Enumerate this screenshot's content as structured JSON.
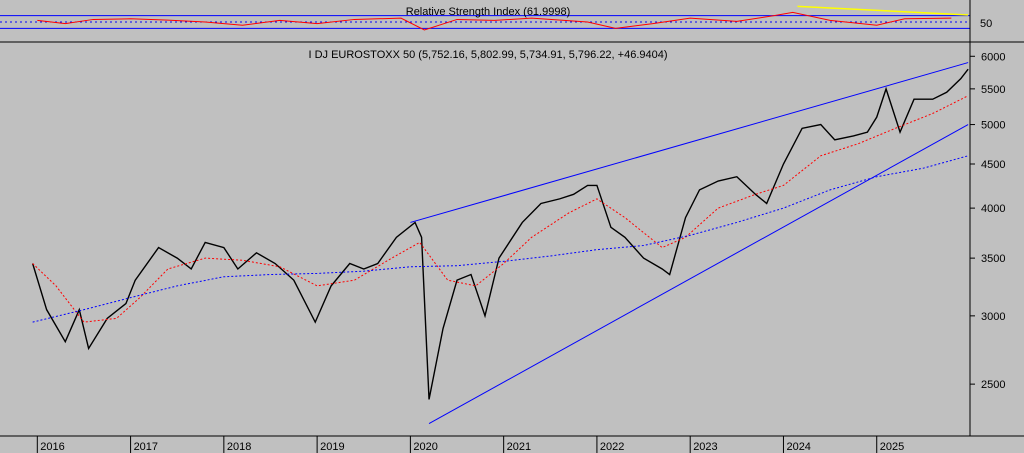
{
  "chart_data": [
    {
      "type": "line",
      "title": "Relative Strength Index (61.9998)",
      "ylim": [
        0,
        100
      ],
      "yticks": [
        50
      ],
      "bands": [
        30,
        50,
        70
      ],
      "last_value": 61.9998,
      "colors": {
        "line": "#ff0000",
        "bands": "#0000ff",
        "mid": "#0000ff",
        "trendline": "#ffff00"
      },
      "approx_points": [
        {
          "x": 2016.0,
          "y": 55
        },
        {
          "x": 2016.3,
          "y": 45
        },
        {
          "x": 2016.6,
          "y": 58
        },
        {
          "x": 2017.0,
          "y": 60
        },
        {
          "x": 2017.4,
          "y": 56
        },
        {
          "x": 2017.8,
          "y": 50
        },
        {
          "x": 2018.2,
          "y": 40
        },
        {
          "x": 2018.6,
          "y": 55
        },
        {
          "x": 2019.0,
          "y": 45
        },
        {
          "x": 2019.4,
          "y": 58
        },
        {
          "x": 2019.9,
          "y": 62
        },
        {
          "x": 2020.15,
          "y": 25
        },
        {
          "x": 2020.5,
          "y": 58
        },
        {
          "x": 2020.9,
          "y": 55
        },
        {
          "x": 2021.3,
          "y": 62
        },
        {
          "x": 2021.9,
          "y": 50
        },
        {
          "x": 2022.2,
          "y": 30
        },
        {
          "x": 2022.6,
          "y": 45
        },
        {
          "x": 2023.0,
          "y": 62
        },
        {
          "x": 2023.5,
          "y": 52
        },
        {
          "x": 2023.9,
          "y": 70
        },
        {
          "x": 2024.1,
          "y": 80
        },
        {
          "x": 2024.5,
          "y": 55
        },
        {
          "x": 2025.0,
          "y": 40
        },
        {
          "x": 2025.3,
          "y": 60
        },
        {
          "x": 2025.8,
          "y": 62
        }
      ]
    },
    {
      "type": "line",
      "title": "I DJ EUROSTOXX 50 (5,752.16, 5,802.99, 5,734.91, 5,796.22, +46.9404)",
      "ohlc_last": {
        "open": 5752.16,
        "high": 5802.99,
        "low": 5734.91,
        "close": 5796.22,
        "change": 46.9404
      },
      "scale": "log",
      "ylim": [
        2200,
        6200
      ],
      "yticks": [
        2500,
        3000,
        3500,
        4000,
        4500,
        5000,
        5500,
        6000
      ],
      "xticks": [
        "2016",
        "2017",
        "2018",
        "2019",
        "2020",
        "2021",
        "2022",
        "2023",
        "2024",
        "2025"
      ],
      "colors": {
        "price": "#000000",
        "ma_short": "#ff0000",
        "ma_long": "#0000ff",
        "channel": "#0000ff"
      },
      "series": [
        {
          "key": "price",
          "points": [
            {
              "x": 2015.95,
              "y": 3450
            },
            {
              "x": 2016.1,
              "y": 3050
            },
            {
              "x": 2016.3,
              "y": 2800
            },
            {
              "x": 2016.45,
              "y": 3050
            },
            {
              "x": 2016.55,
              "y": 2750
            },
            {
              "x": 2016.75,
              "y": 2980
            },
            {
              "x": 2016.95,
              "y": 3100
            },
            {
              "x": 2017.05,
              "y": 3300
            },
            {
              "x": 2017.3,
              "y": 3600
            },
            {
              "x": 2017.5,
              "y": 3500
            },
            {
              "x": 2017.65,
              "y": 3400
            },
            {
              "x": 2017.8,
              "y": 3650
            },
            {
              "x": 2018.0,
              "y": 3600
            },
            {
              "x": 2018.15,
              "y": 3400
            },
            {
              "x": 2018.35,
              "y": 3550
            },
            {
              "x": 2018.55,
              "y": 3450
            },
            {
              "x": 2018.75,
              "y": 3300
            },
            {
              "x": 2018.98,
              "y": 2950
            },
            {
              "x": 2019.15,
              "y": 3250
            },
            {
              "x": 2019.35,
              "y": 3450
            },
            {
              "x": 2019.5,
              "y": 3400
            },
            {
              "x": 2019.65,
              "y": 3450
            },
            {
              "x": 2019.85,
              "y": 3700
            },
            {
              "x": 2020.05,
              "y": 3850
            },
            {
              "x": 2020.12,
              "y": 3700
            },
            {
              "x": 2020.2,
              "y": 2400
            },
            {
              "x": 2020.35,
              "y": 2900
            },
            {
              "x": 2020.5,
              "y": 3300
            },
            {
              "x": 2020.65,
              "y": 3350
            },
            {
              "x": 2020.8,
              "y": 3000
            },
            {
              "x": 2020.95,
              "y": 3500
            },
            {
              "x": 2021.2,
              "y": 3850
            },
            {
              "x": 2021.4,
              "y": 4050
            },
            {
              "x": 2021.6,
              "y": 4100
            },
            {
              "x": 2021.75,
              "y": 4150
            },
            {
              "x": 2021.9,
              "y": 4250
            },
            {
              "x": 2022.0,
              "y": 4250
            },
            {
              "x": 2022.15,
              "y": 3800
            },
            {
              "x": 2022.3,
              "y": 3700
            },
            {
              "x": 2022.5,
              "y": 3500
            },
            {
              "x": 2022.7,
              "y": 3400
            },
            {
              "x": 2022.78,
              "y": 3350
            },
            {
              "x": 2022.95,
              "y": 3900
            },
            {
              "x": 2023.1,
              "y": 4200
            },
            {
              "x": 2023.3,
              "y": 4300
            },
            {
              "x": 2023.5,
              "y": 4350
            },
            {
              "x": 2023.7,
              "y": 4150
            },
            {
              "x": 2023.82,
              "y": 4050
            },
            {
              "x": 2024.0,
              "y": 4500
            },
            {
              "x": 2024.2,
              "y": 4950
            },
            {
              "x": 2024.4,
              "y": 5000
            },
            {
              "x": 2024.55,
              "y": 4800
            },
            {
              "x": 2024.75,
              "y": 4850
            },
            {
              "x": 2024.9,
              "y": 4900
            },
            {
              "x": 2025.0,
              "y": 5100
            },
            {
              "x": 2025.1,
              "y": 5500
            },
            {
              "x": 2025.25,
              "y": 4900
            },
            {
              "x": 2025.4,
              "y": 5350
            },
            {
              "x": 2025.6,
              "y": 5350
            },
            {
              "x": 2025.75,
              "y": 5450
            },
            {
              "x": 2025.9,
              "y": 5650
            },
            {
              "x": 2025.98,
              "y": 5796
            }
          ]
        },
        {
          "key": "ma_short",
          "points": [
            {
              "x": 2015.95,
              "y": 3450
            },
            {
              "x": 2016.2,
              "y": 3250
            },
            {
              "x": 2016.5,
              "y": 2950
            },
            {
              "x": 2016.85,
              "y": 2980
            },
            {
              "x": 2017.1,
              "y": 3150
            },
            {
              "x": 2017.4,
              "y": 3400
            },
            {
              "x": 2017.8,
              "y": 3500
            },
            {
              "x": 2018.2,
              "y": 3480
            },
            {
              "x": 2018.6,
              "y": 3420
            },
            {
              "x": 2019.0,
              "y": 3250
            },
            {
              "x": 2019.4,
              "y": 3300
            },
            {
              "x": 2019.8,
              "y": 3500
            },
            {
              "x": 2020.1,
              "y": 3650
            },
            {
              "x": 2020.4,
              "y": 3300
            },
            {
              "x": 2020.7,
              "y": 3250
            },
            {
              "x": 2021.0,
              "y": 3450
            },
            {
              "x": 2021.3,
              "y": 3700
            },
            {
              "x": 2021.7,
              "y": 3950
            },
            {
              "x": 2022.0,
              "y": 4100
            },
            {
              "x": 2022.3,
              "y": 3900
            },
            {
              "x": 2022.7,
              "y": 3600
            },
            {
              "x": 2022.95,
              "y": 3700
            },
            {
              "x": 2023.3,
              "y": 4000
            },
            {
              "x": 2023.7,
              "y": 4150
            },
            {
              "x": 2024.0,
              "y": 4250
            },
            {
              "x": 2024.4,
              "y": 4600
            },
            {
              "x": 2024.8,
              "y": 4750
            },
            {
              "x": 2025.2,
              "y": 4950
            },
            {
              "x": 2025.6,
              "y": 5150
            },
            {
              "x": 2025.98,
              "y": 5400
            }
          ]
        },
        {
          "key": "ma_long",
          "points": [
            {
              "x": 2015.95,
              "y": 2950
            },
            {
              "x": 2016.5,
              "y": 3050
            },
            {
              "x": 2017.0,
              "y": 3150
            },
            {
              "x": 2017.5,
              "y": 3250
            },
            {
              "x": 2018.0,
              "y": 3330
            },
            {
              "x": 2018.5,
              "y": 3350
            },
            {
              "x": 2019.0,
              "y": 3360
            },
            {
              "x": 2019.5,
              "y": 3380
            },
            {
              "x": 2020.0,
              "y": 3420
            },
            {
              "x": 2020.5,
              "y": 3430
            },
            {
              "x": 2021.0,
              "y": 3470
            },
            {
              "x": 2021.5,
              "y": 3520
            },
            {
              "x": 2022.0,
              "y": 3580
            },
            {
              "x": 2022.5,
              "y": 3620
            },
            {
              "x": 2023.0,
              "y": 3720
            },
            {
              "x": 2023.5,
              "y": 3850
            },
            {
              "x": 2024.0,
              "y": 4000
            },
            {
              "x": 2024.5,
              "y": 4200
            },
            {
              "x": 2025.0,
              "y": 4350
            },
            {
              "x": 2025.5,
              "y": 4450
            },
            {
              "x": 2025.98,
              "y": 4600
            }
          ]
        },
        {
          "key": "channel_upper",
          "points": [
            {
              "x": 2020.0,
              "y": 3850
            },
            {
              "x": 2025.98,
              "y": 5900
            }
          ]
        },
        {
          "key": "channel_lower",
          "points": [
            {
              "x": 2020.2,
              "y": 2250
            },
            {
              "x": 2025.98,
              "y": 5000
            }
          ]
        }
      ]
    }
  ]
}
